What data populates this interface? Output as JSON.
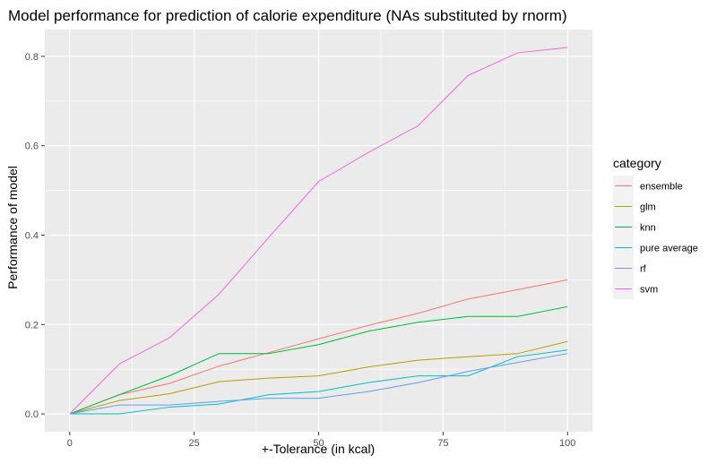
{
  "chart_data": {
    "type": "line",
    "title": "Model performance for prediction of calorie expenditure (NAs substituted by rnorm)",
    "xlabel": "+-Tolerance (in kcal)",
    "ylabel": "Performance of model",
    "xlim": [
      -5,
      105
    ],
    "ylim": [
      -0.04,
      0.86
    ],
    "x_ticks": [
      0,
      25,
      50,
      75,
      100
    ],
    "x_tick_labels": [
      "0",
      "25",
      "50",
      "75",
      "100"
    ],
    "y_ticks": [
      0.0,
      0.2,
      0.4,
      0.6,
      0.8
    ],
    "y_tick_labels": [
      "0.0",
      "0.2",
      "0.4",
      "0.6",
      "0.8"
    ],
    "grid": true,
    "legend": {
      "title": "category",
      "position": "right"
    },
    "x": [
      0,
      10,
      20,
      30,
      40,
      50,
      60,
      70,
      80,
      90,
      100
    ],
    "series": [
      {
        "name": "ensemble",
        "color": "#F8766D",
        "values": [
          0.0,
          0.043,
          0.068,
          0.107,
          0.137,
          0.168,
          0.198,
          0.225,
          0.257,
          0.278,
          0.3
        ]
      },
      {
        "name": "glm",
        "color": "#B79F00",
        "values": [
          0.0,
          0.03,
          0.045,
          0.072,
          0.08,
          0.085,
          0.105,
          0.12,
          0.128,
          0.135,
          0.162
        ]
      },
      {
        "name": "knn",
        "color": "#00BA38",
        "values": [
          0.0,
          0.043,
          0.085,
          0.135,
          0.135,
          0.155,
          0.185,
          0.205,
          0.218,
          0.218,
          0.24
        ]
      },
      {
        "name": "pure average",
        "color": "#00BFC4",
        "values": [
          0.0,
          0.0,
          0.015,
          0.022,
          0.043,
          0.05,
          0.07,
          0.085,
          0.085,
          0.128,
          0.143
        ]
      },
      {
        "name": "rf",
        "color": "#619CFF",
        "values": [
          0.0,
          0.02,
          0.02,
          0.028,
          0.035,
          0.035,
          0.05,
          0.07,
          0.095,
          0.115,
          0.135
        ]
      },
      {
        "name": "svm",
        "color": "#F564E3",
        "values": [
          0.0,
          0.112,
          0.17,
          0.268,
          0.395,
          0.52,
          0.585,
          0.645,
          0.757,
          0.808,
          0.82
        ]
      }
    ],
    "colors": {
      "panel_background": "#EBEBEB",
      "grid_major": "#FFFFFF",
      "tick_text": "#4D4D4D",
      "tick_mark": "#333333",
      "legend_key_background": "#F2F2F2"
    }
  }
}
